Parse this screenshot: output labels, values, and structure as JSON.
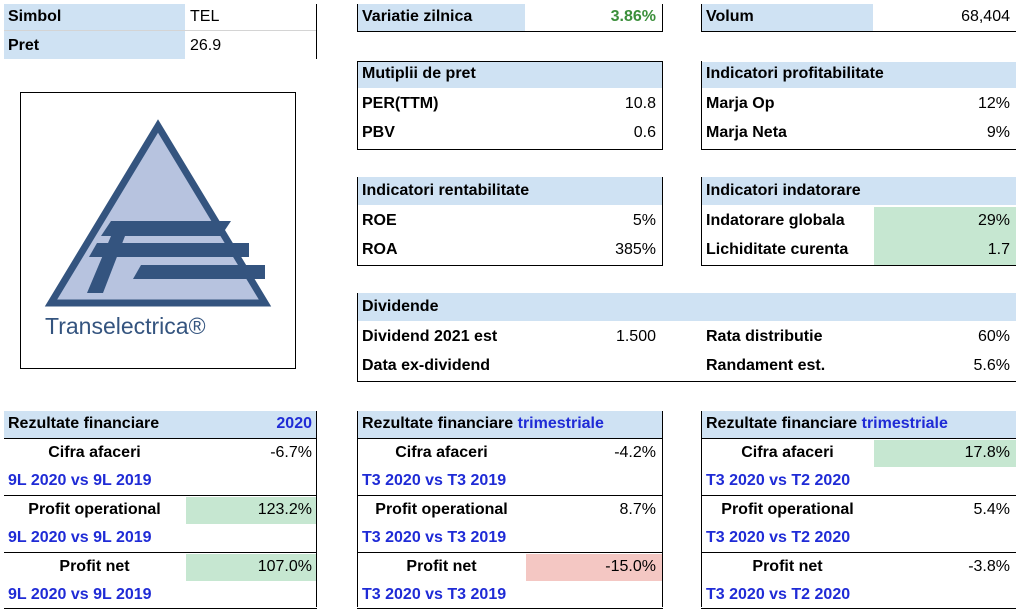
{
  "header": {
    "symbol_label": "Simbol",
    "symbol_value": "TEL",
    "price_label": "Pret",
    "price_value": "26.9",
    "daily_var_label": "Variatie zilnica",
    "daily_var_value": "3.86%",
    "volume_label": "Volum",
    "volume_value": "68,404"
  },
  "logo": {
    "text": "Transelectrica®",
    "color": "#34547f",
    "fill": "#b7c3df"
  },
  "price_multiples": {
    "title": "Mutiplii de pret",
    "rows": [
      {
        "label": "PER(TTM)",
        "value": "10.8"
      },
      {
        "label": "PBV",
        "value": "0.6"
      }
    ]
  },
  "profitability": {
    "title": "Indicatori profitabilitate",
    "rows": [
      {
        "label": "Marja Op",
        "value": "12%"
      },
      {
        "label": "Marja Neta",
        "value": "9%"
      }
    ]
  },
  "returns": {
    "title": "Indicatori rentabilitate",
    "rows": [
      {
        "label": "ROE",
        "value": "5%"
      },
      {
        "label": "ROA",
        "value": "385%"
      }
    ]
  },
  "debt": {
    "title": "Indicatori indatorare",
    "rows": [
      {
        "label": "Indatorare globala",
        "value": "29%"
      },
      {
        "label": "Lichiditate curenta",
        "value": "1.7"
      }
    ]
  },
  "dividends": {
    "title": "Dividende",
    "dividend_label": "Dividend 2021 est",
    "dividend_value": "1.500",
    "exdiv_label": "Data ex-dividend",
    "payout_label": "Rata distributie",
    "payout_value": "60%",
    "yield_label": "Randament est.",
    "yield_value": "5.6%"
  },
  "results_annual": {
    "title": "Rezultate financiare",
    "title_suffix": "2020",
    "rows": [
      {
        "label": "Cifra afaceri",
        "value": "-6.7%",
        "compare": "9L 2020 vs 9L 2019"
      },
      {
        "label": "Profit operational",
        "value": "123.2%",
        "compare": "9L 2020 vs 9L 2019"
      },
      {
        "label": "Profit net",
        "value": "107.0%",
        "compare": "9L 2020 vs 9L 2019"
      }
    ]
  },
  "results_q_yoy": {
    "title": "Rezultate financiare",
    "title_suffix": "trimestriale",
    "rows": [
      {
        "label": "Cifra afaceri",
        "value": "-4.2%",
        "compare": "T3 2020 vs T3 2019"
      },
      {
        "label": "Profit operational",
        "value": "8.7%",
        "compare": "T3 2020 vs T3 2019"
      },
      {
        "label": "Profit net",
        "value": "-15.0%",
        "compare": "T3 2020 vs T3 2019"
      }
    ]
  },
  "results_q_qoq": {
    "title": "Rezultate financiare",
    "title_suffix": "trimestriale",
    "rows": [
      {
        "label": "Cifra afaceri",
        "value": "17.8%",
        "compare": "T3 2020 vs T2 2020"
      },
      {
        "label": "Profit operational",
        "value": "5.4%",
        "compare": "T3 2020 vs T2 2020"
      },
      {
        "label": "Profit net",
        "value": "-3.8%",
        "compare": "T3 2020 vs T2 2020"
      }
    ]
  }
}
